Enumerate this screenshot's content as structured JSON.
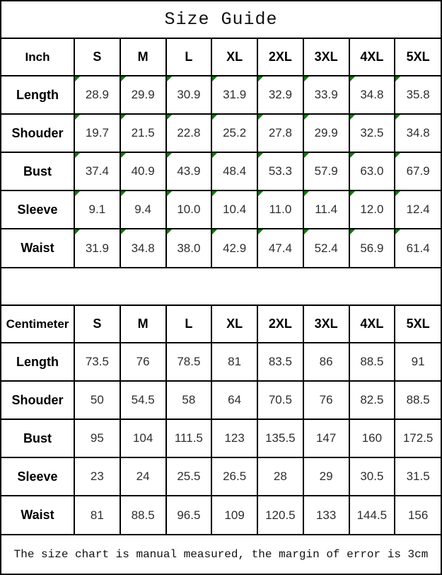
{
  "title": "Size Guide",
  "footer_note": "The size chart is manual measured, the margin of error is 3cm",
  "colors": {
    "flag_marker_green": "#008000",
    "border_black": "#000000"
  },
  "tables": [
    {
      "unit_label": "Inch",
      "sizes": [
        "S",
        "M",
        "L",
        "XL",
        "2XL",
        "3XL",
        "4XL",
        "5XL"
      ],
      "rows": [
        {
          "label": "Length",
          "values": [
            "28.9",
            "29.9",
            "30.9",
            "31.9",
            "32.9",
            "33.9",
            "34.8",
            "35.8"
          ]
        },
        {
          "label": "Shouder",
          "values": [
            "19.7",
            "21.5",
            "22.8",
            "25.2",
            "27.8",
            "29.9",
            "32.5",
            "34.8"
          ]
        },
        {
          "label": "Bust",
          "values": [
            "37.4",
            "40.9",
            "43.9",
            "48.4",
            "53.3",
            "57.9",
            "63.0",
            "67.9"
          ]
        },
        {
          "label": "Sleeve",
          "values": [
            "9.1",
            "9.4",
            "10.0",
            "10.4",
            "11.0",
            "11.4",
            "12.0",
            "12.4"
          ]
        },
        {
          "label": "Waist",
          "values": [
            "31.9",
            "34.8",
            "38.0",
            "42.9",
            "47.4",
            "52.4",
            "56.9",
            "61.4"
          ]
        }
      ]
    },
    {
      "unit_label": "Centimeter",
      "sizes": [
        "S",
        "M",
        "L",
        "XL",
        "2XL",
        "3XL",
        "4XL",
        "5XL"
      ],
      "rows": [
        {
          "label": "Length",
          "values": [
            "73.5",
            "76",
            "78.5",
            "81",
            "83.5",
            "86",
            "88.5",
            "91"
          ]
        },
        {
          "label": "Shouder",
          "values": [
            "50",
            "54.5",
            "58",
            "64",
            "70.5",
            "76",
            "82.5",
            "88.5"
          ]
        },
        {
          "label": "Bust",
          "values": [
            "95",
            "104",
            "111.5",
            "123",
            "135.5",
            "147",
            "160",
            "172.5"
          ]
        },
        {
          "label": "Sleeve",
          "values": [
            "23",
            "24",
            "25.5",
            "26.5",
            "28",
            "29",
            "30.5",
            "31.5"
          ]
        },
        {
          "label": "Waist",
          "values": [
            "81",
            "88.5",
            "96.5",
            "109",
            "120.5",
            "133",
            "144.5",
            "156"
          ]
        }
      ]
    }
  ]
}
